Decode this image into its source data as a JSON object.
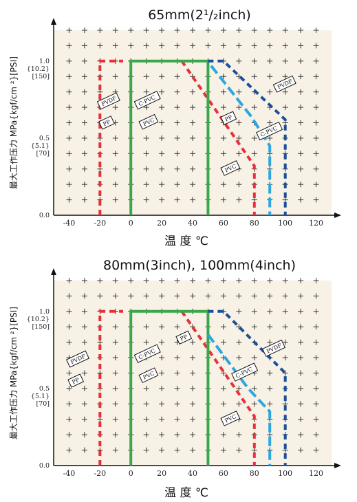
{
  "chart_data": [
    {
      "type": "line",
      "title": "65mm(2¹/₂inch)",
      "xlabel": "温 度 ℃",
      "ylabel": "最大工作压力 MPa{kgf/cm ²}[PSI]",
      "xlim": [
        -50,
        130
      ],
      "ylim": [
        0,
        1.2
      ],
      "xticks": [
        -40,
        -20,
        0,
        20,
        40,
        60,
        80,
        100,
        120
      ],
      "yticks": [
        {
          "value": 0.0,
          "labels": [
            "0.0"
          ]
        },
        {
          "value": 0.5,
          "labels": [
            "0.5",
            "{5.1}",
            "[70]"
          ]
        },
        {
          "value": 1.0,
          "labels": [
            "1.0",
            "{10.2}",
            "[150]"
          ]
        }
      ],
      "grid": true,
      "series": [
        {
          "name": "PP",
          "color": "#e8303a",
          "style": "dashed",
          "points": [
            [
              -20,
              0
            ],
            [
              -20,
              1.0
            ],
            [
              -5,
              1.0
            ]
          ]
        },
        {
          "name": "PVC",
          "color": "#e8303a",
          "style": "dashed",
          "points": [
            [
              33,
              1.0
            ],
            [
              80,
              0.32
            ],
            [
              80,
              0
            ]
          ]
        },
        {
          "name": "C-PVC",
          "color": "#3aa84a",
          "style": "solid",
          "points": [
            [
              0,
              0
            ],
            [
              0,
              1.0
            ],
            [
              50,
              1.0
            ],
            [
              50,
              0
            ]
          ]
        },
        {
          "name": "PVDF-low",
          "color": "#1b4f9a",
          "style": "dashed",
          "points": [
            [
              50,
              1.0
            ],
            [
              60,
              1.0
            ],
            [
              100,
              0.62
            ],
            [
              100,
              0
            ]
          ]
        },
        {
          "name": "C-PVC-high",
          "color": "#2aa6e0",
          "style": "dashed",
          "points": [
            [
              52,
              0.97
            ],
            [
              78,
              0.64
            ],
            [
              90,
              0.45
            ],
            [
              90,
              0
            ]
          ]
        }
      ],
      "annotations": [
        {
          "text": "PVDF",
          "x": -19,
          "y": 0.7
        },
        {
          "text": "PP",
          "x": -18,
          "y": 0.57
        },
        {
          "text": "C-PVC",
          "x": 5,
          "y": 0.7
        },
        {
          "text": "PVC",
          "x": 8,
          "y": 0.57
        },
        {
          "text": "PP",
          "x": 61,
          "y": 0.6
        },
        {
          "text": "C-PVC",
          "x": 84,
          "y": 0.5
        },
        {
          "text": "PVDF",
          "x": 95,
          "y": 0.81
        },
        {
          "text": "PVC",
          "x": 61,
          "y": 0.27
        }
      ]
    },
    {
      "type": "line",
      "title": "80mm(3inch), 100mm(4inch)",
      "xlabel": "温 度 ℃",
      "ylabel": "最大工作压力 MPa{kgf/cm ²}[PSI]",
      "xlim": [
        -50,
        130
      ],
      "ylim": [
        0,
        1.2
      ],
      "xticks": [
        -40,
        -20,
        0,
        20,
        40,
        60,
        80,
        100,
        120
      ],
      "yticks": [
        {
          "value": 0.0,
          "labels": [
            "0.0"
          ]
        },
        {
          "value": 0.5,
          "labels": [
            "0.5",
            "{5.1}",
            "[70]"
          ]
        },
        {
          "value": 1.0,
          "labels": [
            "1.0",
            "{10.2}",
            "[150]"
          ]
        }
      ],
      "grid": true,
      "series": [
        {
          "name": "PP",
          "color": "#e8303a",
          "style": "dashed",
          "points": [
            [
              -20,
              0
            ],
            [
              -20,
              1.0
            ],
            [
              -5,
              1.0
            ]
          ]
        },
        {
          "name": "PVC",
          "color": "#e8303a",
          "style": "dashed",
          "points": [
            [
              33,
              1.0
            ],
            [
              80,
              0.32
            ],
            [
              80,
              0
            ]
          ]
        },
        {
          "name": "C-PVC",
          "color": "#3aa84a",
          "style": "solid",
          "points": [
            [
              0,
              0
            ],
            [
              0,
              1.0
            ],
            [
              50,
              1.0
            ],
            [
              50,
              0
            ]
          ]
        },
        {
          "name": "PVDF-low",
          "color": "#1b4f9a",
          "style": "dashed",
          "points": [
            [
              50,
              1.0
            ],
            [
              60,
              1.0
            ],
            [
              100,
              0.6
            ],
            [
              100,
              0
            ]
          ]
        },
        {
          "name": "C-PVC-high",
          "color": "#2aa6e0",
          "style": "dashed",
          "points": [
            [
              50,
              0.85
            ],
            [
              76,
              0.5
            ],
            [
              90,
              0.35
            ],
            [
              90,
              0
            ]
          ]
        }
      ],
      "annotations": [
        {
          "text": "PVDF",
          "x": -39,
          "y": 0.65
        },
        {
          "text": "PP",
          "x": -38,
          "y": 0.52
        },
        {
          "text": "C-PVC",
          "x": 5,
          "y": 0.68
        },
        {
          "text": "PVC",
          "x": 8,
          "y": 0.55
        },
        {
          "text": "PP",
          "x": 32,
          "y": 0.8
        },
        {
          "text": "C-PVC",
          "x": 68,
          "y": 0.56
        },
        {
          "text": "PVDF",
          "x": 88,
          "y": 0.72
        },
        {
          "text": "PVC",
          "x": 61,
          "y": 0.27
        }
      ]
    }
  ]
}
